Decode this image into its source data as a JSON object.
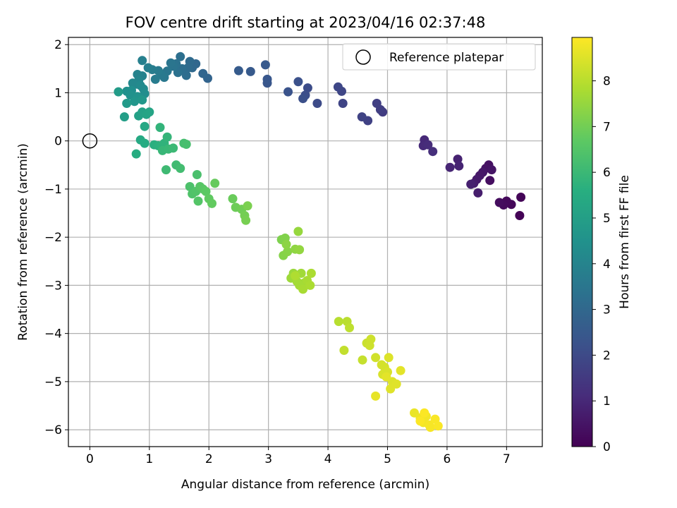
{
  "chart_data": {
    "type": "scatter",
    "title": "FOV centre drift starting at 2023/04/16 02:37:48",
    "xlabel": "Angular distance from reference (arcmin)",
    "ylabel": "Rotation from reference (arcmin)",
    "xlim": [
      -0.36,
      7.6
    ],
    "ylim": [
      -6.35,
      2.15
    ],
    "x_ticks": [
      0,
      1,
      2,
      3,
      4,
      5,
      6,
      7
    ],
    "y_ticks": [
      2,
      1,
      0,
      -1,
      -2,
      -3,
      -4,
      -5,
      -6
    ],
    "grid": true,
    "colormap": "viridis",
    "colorbar": {
      "label": "Hours from first FF file",
      "range": [
        0,
        8.95
      ],
      "ticks": [
        0,
        1,
        2,
        3,
        4,
        5,
        6,
        7,
        8
      ]
    },
    "legend": {
      "position": "top-right",
      "entries": [
        {
          "label": "Reference platepar",
          "marker": "open-circle"
        }
      ]
    },
    "reference_point": {
      "x": 0,
      "y": 0
    },
    "points": [
      [
        7.22,
        -1.55,
        0.05
      ],
      [
        7.24,
        -1.17,
        0.1
      ],
      [
        7.08,
        -1.32,
        0.15
      ],
      [
        7.0,
        -1.25,
        0.2
      ],
      [
        6.95,
        -1.33,
        0.25
      ],
      [
        6.88,
        -1.28,
        0.3
      ],
      [
        6.72,
        -0.82,
        0.35
      ],
      [
        6.7,
        -0.5,
        0.4
      ],
      [
        6.65,
        -0.57,
        0.45
      ],
      [
        6.75,
        -0.6,
        0.5
      ],
      [
        6.6,
        -0.65,
        0.55
      ],
      [
        6.55,
        -0.72,
        0.6
      ],
      [
        6.5,
        -0.8,
        0.65
      ],
      [
        6.45,
        -0.88,
        0.7
      ],
      [
        6.52,
        -1.08,
        0.75
      ],
      [
        6.4,
        -0.9,
        0.8
      ],
      [
        6.18,
        -0.38,
        0.85
      ],
      [
        6.2,
        -0.52,
        0.9
      ],
      [
        6.05,
        -0.55,
        0.95
      ],
      [
        5.62,
        0.02,
        1.05
      ],
      [
        5.6,
        -0.1,
        1.1
      ],
      [
        5.68,
        -0.08,
        1.15
      ],
      [
        5.76,
        -0.22,
        1.2
      ],
      [
        4.92,
        0.6,
        1.6
      ],
      [
        4.88,
        0.65,
        1.65
      ],
      [
        4.82,
        0.78,
        1.7
      ],
      [
        4.67,
        0.42,
        1.75
      ],
      [
        4.57,
        0.5,
        1.8
      ],
      [
        4.25,
        0.78,
        1.85
      ],
      [
        4.23,
        1.03,
        1.9
      ],
      [
        4.17,
        1.12,
        1.95
      ],
      [
        3.82,
        0.78,
        2.05
      ],
      [
        3.66,
        1.1,
        2.1
      ],
      [
        3.62,
        0.95,
        2.15
      ],
      [
        3.58,
        0.88,
        2.2
      ],
      [
        3.5,
        1.23,
        2.25
      ],
      [
        3.33,
        1.02,
        2.3
      ],
      [
        2.98,
        1.2,
        2.4
      ],
      [
        2.98,
        1.28,
        2.45
      ],
      [
        2.95,
        1.58,
        2.5
      ],
      [
        2.7,
        1.44,
        2.55
      ],
      [
        2.5,
        1.46,
        2.6
      ],
      [
        1.98,
        1.3,
        2.9
      ],
      [
        1.9,
        1.4,
        2.95
      ],
      [
        1.78,
        1.6,
        3.0
      ],
      [
        1.72,
        1.52,
        3.05
      ],
      [
        1.68,
        1.65,
        3.1
      ],
      [
        1.65,
        1.52,
        3.15
      ],
      [
        1.62,
        1.36,
        3.2
      ],
      [
        1.55,
        1.5,
        3.25
      ],
      [
        1.52,
        1.75,
        3.3
      ],
      [
        1.48,
        1.42,
        3.35
      ],
      [
        1.45,
        1.6,
        3.4
      ],
      [
        1.4,
        1.55,
        3.45
      ],
      [
        1.36,
        1.62,
        3.5
      ],
      [
        1.3,
        1.45,
        3.55
      ],
      [
        1.25,
        1.32,
        3.6
      ],
      [
        1.2,
        1.38,
        3.65
      ],
      [
        1.15,
        1.46,
        3.7
      ],
      [
        1.1,
        1.28,
        3.75
      ],
      [
        1.05,
        1.48,
        3.8
      ],
      [
        0.98,
        1.52,
        3.85
      ],
      [
        0.88,
        1.67,
        3.9
      ],
      [
        0.88,
        1.35,
        3.95
      ],
      [
        0.8,
        1.38,
        4.0
      ],
      [
        0.82,
        1.25,
        4.1
      ],
      [
        0.78,
        1.18,
        4.15
      ],
      [
        0.72,
        1.2,
        4.2
      ],
      [
        0.85,
        1.15,
        4.25
      ],
      [
        0.9,
        1.08,
        4.3
      ],
      [
        0.92,
        0.98,
        4.4
      ],
      [
        0.7,
        1.05,
        4.45
      ],
      [
        0.62,
        1.03,
        4.5
      ],
      [
        0.68,
        0.95,
        4.55
      ],
      [
        0.8,
        0.92,
        4.6
      ],
      [
        0.75,
        0.82,
        4.7
      ],
      [
        0.88,
        0.85,
        4.75
      ],
      [
        0.62,
        0.78,
        4.85
      ],
      [
        0.48,
        1.02,
        4.9
      ],
      [
        0.58,
        0.5,
        5.0
      ],
      [
        0.82,
        0.52,
        5.1
      ],
      [
        0.88,
        0.6,
        5.15
      ],
      [
        0.95,
        0.55,
        5.2
      ],
      [
        1.0,
        0.6,
        5.25
      ],
      [
        0.92,
        0.3,
        5.35
      ],
      [
        0.85,
        0.02,
        5.45
      ],
      [
        0.92,
        -0.05,
        5.5
      ],
      [
        0.78,
        -0.27,
        5.55
      ],
      [
        1.08,
        -0.08,
        5.65
      ],
      [
        1.15,
        -0.1,
        5.7
      ],
      [
        1.2,
        -0.12,
        5.75
      ],
      [
        1.25,
        -0.05,
        5.8
      ],
      [
        1.18,
        0.28,
        5.85
      ],
      [
        1.3,
        0.08,
        5.9
      ],
      [
        1.22,
        -0.2,
        5.95
      ],
      [
        1.32,
        -0.17,
        6.0
      ],
      [
        1.4,
        -0.15,
        6.05
      ],
      [
        1.28,
        -0.6,
        6.1
      ],
      [
        1.45,
        -0.5,
        6.15
      ],
      [
        1.52,
        -0.57,
        6.2
      ],
      [
        1.58,
        -0.05,
        6.25
      ],
      [
        1.62,
        -0.07,
        6.3
      ],
      [
        1.8,
        -0.7,
        6.35
      ],
      [
        1.68,
        -0.95,
        6.4
      ],
      [
        1.72,
        -1.1,
        6.45
      ],
      [
        1.78,
        -1.05,
        6.5
      ],
      [
        1.82,
        -1.25,
        6.55
      ],
      [
        1.85,
        -0.95,
        6.6
      ],
      [
        1.9,
        -1.0,
        6.65
      ],
      [
        1.95,
        -1.05,
        6.7
      ],
      [
        2.0,
        -1.2,
        6.75
      ],
      [
        2.05,
        -1.3,
        6.8
      ],
      [
        2.1,
        -0.88,
        6.85
      ],
      [
        2.4,
        -1.2,
        6.9
      ],
      [
        2.45,
        -1.38,
        6.95
      ],
      [
        2.55,
        -1.42,
        7.0
      ],
      [
        2.6,
        -1.55,
        7.05
      ],
      [
        2.62,
        -1.65,
        7.1
      ],
      [
        2.65,
        -1.35,
        7.15
      ],
      [
        3.22,
        -2.05,
        7.2
      ],
      [
        3.28,
        -2.02,
        7.25
      ],
      [
        3.25,
        -2.38,
        7.3
      ],
      [
        3.32,
        -2.3,
        7.35
      ],
      [
        3.3,
        -2.15,
        7.4
      ],
      [
        3.45,
        -2.25,
        7.45
      ],
      [
        3.52,
        -2.26,
        7.5
      ],
      [
        3.5,
        -1.88,
        7.55
      ],
      [
        3.42,
        -2.75,
        7.6
      ],
      [
        3.38,
        -2.85,
        7.65
      ],
      [
        3.55,
        -2.75,
        7.7
      ],
      [
        3.6,
        -2.95,
        7.7
      ],
      [
        3.48,
        -2.92,
        7.75
      ],
      [
        3.52,
        -3.0,
        7.75
      ],
      [
        3.58,
        -3.08,
        7.8
      ],
      [
        3.65,
        -2.9,
        7.8
      ],
      [
        3.72,
        -2.75,
        7.85
      ],
      [
        3.7,
        -3.0,
        7.85
      ],
      [
        3.45,
        -2.8,
        7.9
      ],
      [
        4.18,
        -3.75,
        8.0
      ],
      [
        4.32,
        -3.75,
        8.05
      ],
      [
        4.36,
        -3.88,
        8.1
      ],
      [
        4.27,
        -4.35,
        8.15
      ],
      [
        4.58,
        -4.55,
        8.2
      ],
      [
        4.65,
        -4.2,
        8.25
      ],
      [
        4.72,
        -4.12,
        8.3
      ],
      [
        4.7,
        -4.25,
        8.3
      ],
      [
        4.8,
        -4.5,
        8.35
      ],
      [
        4.9,
        -4.65,
        8.4
      ],
      [
        4.95,
        -4.7,
        8.4
      ],
      [
        5.0,
        -4.8,
        8.45
      ],
      [
        4.92,
        -4.85,
        8.45
      ],
      [
        5.02,
        -4.5,
        8.5
      ],
      [
        5.08,
        -5.0,
        8.5
      ],
      [
        5.05,
        -5.15,
        8.55
      ],
      [
        5.15,
        -5.05,
        8.55
      ],
      [
        5.22,
        -4.77,
        8.6
      ],
      [
        4.98,
        -4.9,
        8.6
      ],
      [
        4.8,
        -5.3,
        8.65
      ],
      [
        5.45,
        -5.65,
        8.7
      ],
      [
        5.55,
        -5.75,
        8.75
      ],
      [
        5.6,
        -5.85,
        8.8
      ],
      [
        5.65,
        -5.72,
        8.8
      ],
      [
        5.7,
        -5.9,
        8.85
      ],
      [
        5.72,
        -5.95,
        8.85
      ],
      [
        5.8,
        -5.78,
        8.9
      ],
      [
        5.85,
        -5.92,
        8.9
      ],
      [
        5.55,
        -5.82,
        8.92
      ],
      [
        5.62,
        -5.65,
        8.92
      ]
    ]
  }
}
